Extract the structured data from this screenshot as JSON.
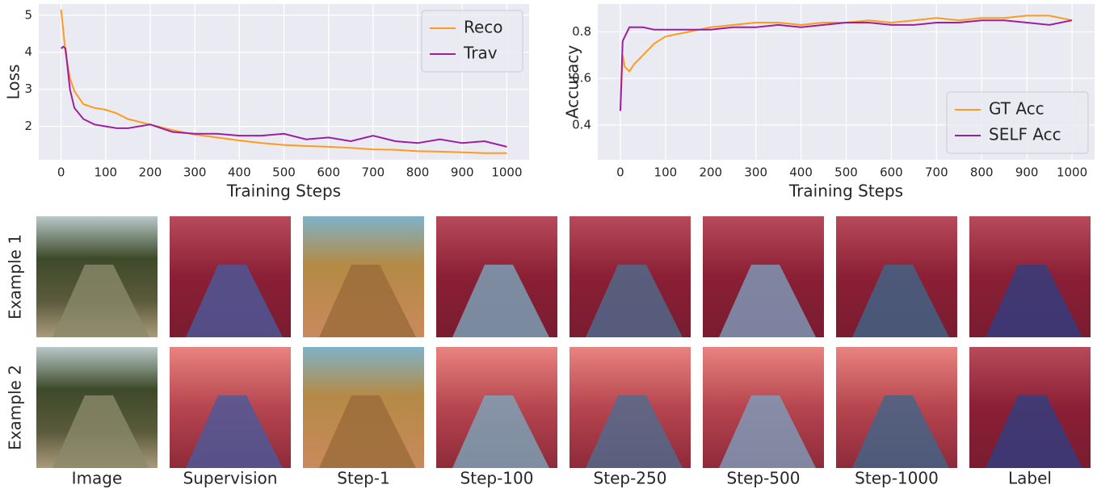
{
  "chart_data": [
    {
      "type": "line",
      "xlabel": "Training Steps",
      "ylabel": "Loss",
      "x": [
        0,
        5,
        10,
        20,
        30,
        50,
        75,
        100,
        125,
        150,
        200,
        250,
        300,
        350,
        400,
        450,
        500,
        550,
        600,
        650,
        700,
        750,
        800,
        850,
        900,
        950,
        1000
      ],
      "series": [
        {
          "name": "Reco",
          "color": "#ff9a1f",
          "values": [
            5.15,
            4.6,
            4.0,
            3.3,
            2.95,
            2.6,
            2.5,
            2.45,
            2.35,
            2.2,
            2.05,
            1.9,
            1.78,
            1.7,
            1.62,
            1.55,
            1.5,
            1.47,
            1.45,
            1.42,
            1.38,
            1.37,
            1.33,
            1.32,
            1.3,
            1.28,
            1.28
          ]
        },
        {
          "name": "Trav",
          "color": "#9b1fa0",
          "values": [
            4.1,
            4.15,
            4.1,
            3.0,
            2.5,
            2.2,
            2.05,
            2.0,
            1.95,
            1.95,
            2.05,
            1.85,
            1.8,
            1.8,
            1.75,
            1.75,
            1.8,
            1.65,
            1.7,
            1.6,
            1.75,
            1.6,
            1.55,
            1.65,
            1.55,
            1.6,
            1.45
          ]
        }
      ],
      "xlim": [
        -50,
        1050
      ],
      "xticks": [
        0,
        100,
        200,
        300,
        400,
        500,
        600,
        700,
        800,
        900,
        1000
      ],
      "ylim": [
        1.1,
        5.3
      ],
      "yticks": [
        2,
        3,
        4,
        5
      ],
      "grid": true,
      "legend": "upper right"
    },
    {
      "type": "line",
      "xlabel": "Training Steps",
      "ylabel": "Accuracy",
      "x": [
        0,
        5,
        10,
        20,
        30,
        50,
        75,
        100,
        125,
        150,
        200,
        250,
        300,
        350,
        400,
        450,
        500,
        550,
        600,
        650,
        700,
        750,
        800,
        850,
        900,
        950,
        1000
      ],
      "series": [
        {
          "name": "GT Acc",
          "color": "#ff9a1f",
          "values": [
            0.46,
            0.7,
            0.65,
            0.63,
            0.66,
            0.7,
            0.75,
            0.78,
            0.79,
            0.8,
            0.82,
            0.83,
            0.84,
            0.84,
            0.83,
            0.84,
            0.84,
            0.85,
            0.84,
            0.85,
            0.86,
            0.85,
            0.86,
            0.86,
            0.87,
            0.87,
            0.85
          ]
        },
        {
          "name": "SELF Acc",
          "color": "#9b1fa0",
          "values": [
            0.46,
            0.76,
            0.78,
            0.82,
            0.82,
            0.82,
            0.81,
            0.81,
            0.81,
            0.81,
            0.81,
            0.82,
            0.82,
            0.83,
            0.82,
            0.83,
            0.84,
            0.84,
            0.83,
            0.83,
            0.84,
            0.84,
            0.85,
            0.85,
            0.84,
            0.83,
            0.85
          ]
        }
      ],
      "xlim": [
        -50,
        1050
      ],
      "xticks": [
        0,
        100,
        200,
        300,
        400,
        500,
        600,
        700,
        800,
        900,
        1000
      ],
      "ylim": [
        0.25,
        0.92
      ],
      "yticks": [
        0.4,
        0.6,
        0.8
      ],
      "grid": true,
      "legend": "lower right"
    }
  ],
  "image_grid": {
    "row_labels": [
      "Example 1",
      "Example 2"
    ],
    "column_labels": [
      "Image",
      "Supervision",
      "Step-1",
      "Step-100",
      "Step-250",
      "Step-500",
      "Step-1000",
      "Label"
    ]
  }
}
